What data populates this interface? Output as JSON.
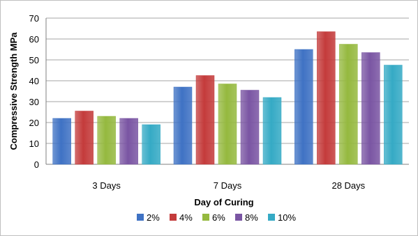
{
  "chart_data": {
    "type": "bar",
    "categories": [
      "3 Days",
      "7 Days",
      "28 Days"
    ],
    "series": [
      {
        "name": "2%",
        "color": "#3f72c4",
        "values": [
          22,
          37,
          55
        ]
      },
      {
        "name": "4%",
        "color": "#c43b3b",
        "values": [
          25.5,
          42.5,
          63.5
        ]
      },
      {
        "name": "6%",
        "color": "#95b93f",
        "values": [
          23,
          38.5,
          57.5
        ]
      },
      {
        "name": "8%",
        "color": "#7a55a3",
        "values": [
          22,
          35.5,
          53.5
        ]
      },
      {
        "name": "10%",
        "color": "#35aac5",
        "values": [
          19,
          32,
          47.5
        ]
      }
    ],
    "xlabel": "Day of Curing",
    "ylabel": "Compressive Strength MPa",
    "ylim": [
      0,
      70
    ],
    "yticks": [
      0,
      10,
      20,
      30,
      40,
      50,
      60,
      70
    ],
    "grid": true,
    "legend_position": "bottom"
  }
}
